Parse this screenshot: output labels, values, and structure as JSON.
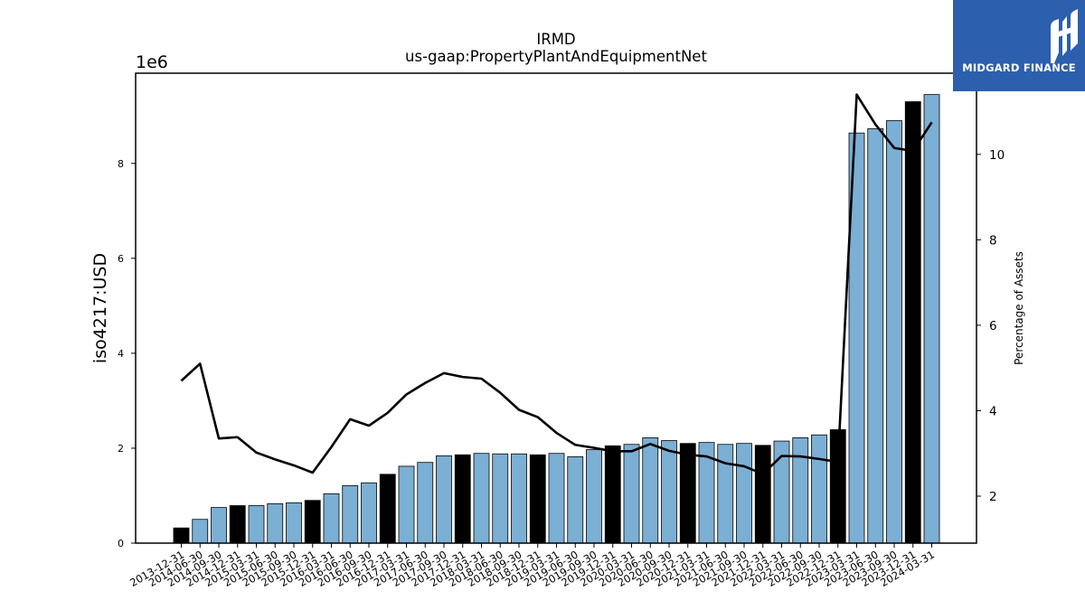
{
  "chart_data": {
    "type": "bar",
    "title": "IRMD",
    "subtitle": "us-gaap:PropertyPlantAndEquipmentNet",
    "ylabel": "iso4217:USD",
    "y_multiplier_label": "1e6",
    "y2label": "Percentage of Assets",
    "ylim": [
      0,
      9900000
    ],
    "y2lim": [
      0.9,
      11.9
    ],
    "yticks": [
      0,
      2,
      4,
      6,
      8
    ],
    "y2ticks": [
      2,
      4,
      6,
      8,
      10
    ],
    "grid": false,
    "legend": "none",
    "categories": [
      "2013-12-31",
      "2014-06-30",
      "2014-09-30",
      "2014-12-31",
      "2015-03-31",
      "2015-06-30",
      "2015-09-30",
      "2015-12-31",
      "2016-03-31",
      "2016-06-30",
      "2016-09-30",
      "2016-12-31",
      "2017-03-31",
      "2017-06-30",
      "2017-09-30",
      "2017-12-31",
      "2018-03-31",
      "2018-06-30",
      "2018-09-30",
      "2018-12-31",
      "2019-03-31",
      "2019-06-30",
      "2019-09-30",
      "2019-12-31",
      "2020-03-31",
      "2020-06-30",
      "2020-09-30",
      "2020-12-31",
      "2021-03-31",
      "2021-06-30",
      "2021-09-30",
      "2021-12-31",
      "2022-03-31",
      "2022-06-30",
      "2022-09-30",
      "2022-12-31",
      "2023-03-31",
      "2023-06-30",
      "2023-09-30",
      "2023-12-31",
      "2024-03-31"
    ],
    "series": [
      {
        "kind": "bar",
        "values": [
          320000,
          500000,
          750000,
          790000,
          790000,
          830000,
          850000,
          900000,
          1040000,
          1210000,
          1270000,
          1450000,
          1620000,
          1700000,
          1840000,
          1860000,
          1890000,
          1880000,
          1880000,
          1860000,
          1890000,
          1820000,
          1970000,
          2050000,
          2080000,
          2220000,
          2160000,
          2100000,
          2120000,
          2080000,
          2100000,
          2060000,
          2150000,
          2220000,
          2280000,
          2390000,
          8640000,
          8730000,
          8900000,
          9300000,
          9450000
        ],
        "highlight": [
          true,
          false,
          false,
          true,
          false,
          false,
          false,
          true,
          false,
          false,
          false,
          true,
          false,
          false,
          false,
          true,
          false,
          false,
          false,
          true,
          false,
          false,
          false,
          true,
          false,
          false,
          false,
          true,
          false,
          false,
          false,
          true,
          false,
          false,
          false,
          true,
          false,
          false,
          false,
          true,
          false
        ],
        "color": "#7bafd4",
        "highlight_color": "#000000"
      },
      {
        "kind": "line",
        "axis": "right",
        "values": [
          4.7,
          5.1,
          3.35,
          3.38,
          3.02,
          2.86,
          2.72,
          2.55,
          3.15,
          3.8,
          3.65,
          3.95,
          4.38,
          4.65,
          4.88,
          4.79,
          4.75,
          4.42,
          4.02,
          3.85,
          3.48,
          3.2,
          3.13,
          3.05,
          3.05,
          3.22,
          3.06,
          2.97,
          2.93,
          2.77,
          2.7,
          2.52,
          2.94,
          2.93,
          2.87,
          2.8,
          11.4,
          10.7,
          10.15,
          10.08,
          10.75
        ],
        "color": "#000000"
      }
    ]
  },
  "logo": {
    "text": "MIDGARD FINANCE",
    "background": "#2c5fad"
  }
}
